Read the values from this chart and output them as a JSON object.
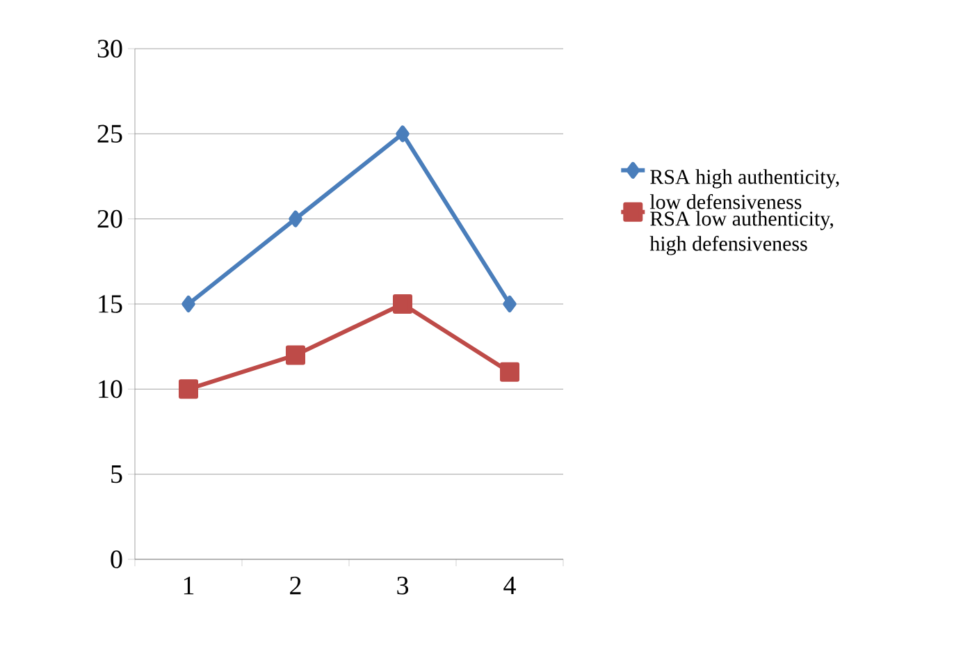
{
  "chart_data": {
    "type": "line",
    "categories": [
      "1",
      "2",
      "3",
      "4"
    ],
    "series": [
      {
        "name": "RSA high authenticity, low defensiveness",
        "color": "#4a7ebb",
        "marker": "diamond",
        "values": [
          15,
          20,
          25,
          15
        ]
      },
      {
        "name": "RSA low authenticity, high defensiveness",
        "color": "#be4b48",
        "marker": "square",
        "values": [
          10,
          12,
          15,
          11
        ]
      }
    ],
    "ylim": [
      0,
      30
    ],
    "yticks": [
      0,
      5,
      10,
      15,
      20,
      25,
      30
    ],
    "grid": "y",
    "legend": "right"
  }
}
